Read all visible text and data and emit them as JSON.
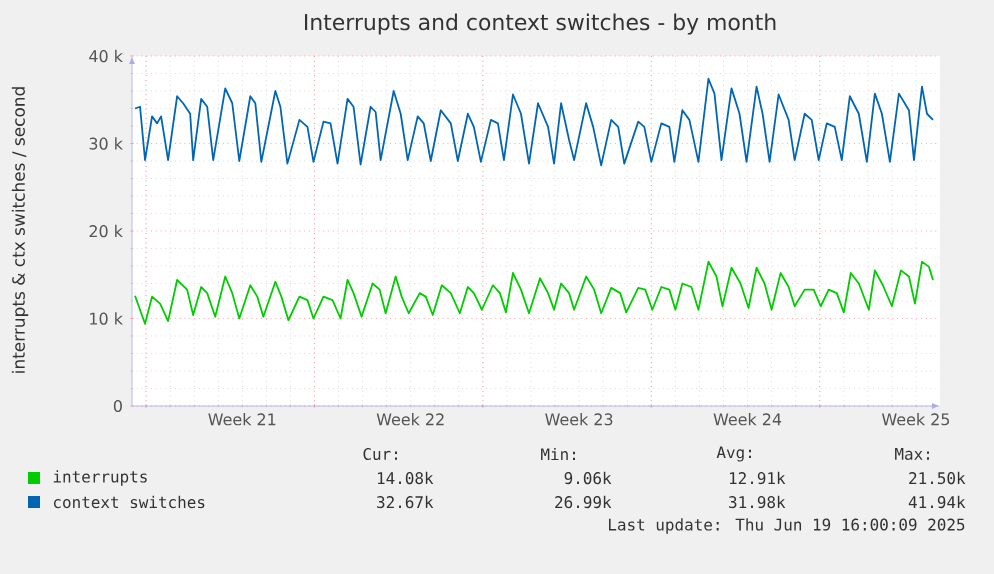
{
  "chart_data": {
    "type": "line",
    "title": "Interrupts and context switches - by month",
    "ylabel": "interrupts & ctx switches / second",
    "xlim": [
      "2025-05-18T10:00",
      "2025-06-21T00:00"
    ],
    "xticks": [
      {
        "value": "2025-05-19",
        "label": null
      },
      {
        "value": "2025-05-23",
        "label": "Week 21"
      },
      {
        "value": "2025-05-26",
        "label": null
      },
      {
        "value": "2025-05-30",
        "label": "Week 22"
      },
      {
        "value": "2025-06-02",
        "label": null
      },
      {
        "value": "2025-06-06",
        "label": "Week 23"
      },
      {
        "value": "2025-06-09",
        "label": null
      },
      {
        "value": "2025-06-13",
        "label": "Week 24"
      },
      {
        "value": "2025-06-16",
        "label": null
      },
      {
        "value": "2025-06-20",
        "label": "Week 25"
      }
    ],
    "ylim": [
      0,
      40000
    ],
    "yticks": [
      0,
      {
        "value": 10000,
        "label": "10 k"
      },
      {
        "value": 20000,
        "label": "20 k"
      },
      {
        "value": 30000,
        "label": "30 k"
      },
      {
        "value": 40000,
        "label": "40 k"
      }
    ],
    "grid": true,
    "legend": "bottom",
    "series": [
      {
        "name": "interrupts",
        "color": "#00cc00",
        "x": [
          "2025-05-18T13:00",
          "2025-05-18T23:00",
          "2025-05-19T06:00",
          "2025-05-19T14:00",
          "2025-05-19T22:00",
          "2025-05-20T07:00",
          "2025-05-20T17:00",
          "2025-05-20T23:00",
          "2025-05-21T07:00",
          "2025-05-21T13:00",
          "2025-05-21T21:00",
          "2025-05-22T07:00",
          "2025-05-22T14:00",
          "2025-05-22T21:00",
          "2025-05-23T08:00",
          "2025-05-23T15:00",
          "2025-05-23T21:00",
          "2025-05-24T09:00",
          "2025-05-24T15:00",
          "2025-05-24T22:00",
          "2025-05-25T09:00",
          "2025-05-25T17:00",
          "2025-05-25T23:00",
          "2025-05-26T09:00",
          "2025-05-26T18:00",
          "2025-05-27T02:00",
          "2025-05-27T09:00",
          "2025-05-27T15:00",
          "2025-05-27T23:00",
          "2025-05-28T10:00",
          "2025-05-28T17:00",
          "2025-05-28T23:00",
          "2025-05-29T09:00",
          "2025-05-29T15:00",
          "2025-05-29T22:00",
          "2025-05-30T09:00",
          "2025-05-30T15:00",
          "2025-05-30T22:00",
          "2025-05-31T07:00",
          "2025-05-31T16:00",
          "2025-06-01T01:00",
          "2025-06-01T09:00",
          "2025-06-01T15:00",
          "2025-06-01T23:00",
          "2025-06-02T10:00",
          "2025-06-02T17:00",
          "2025-06-02T23:00",
          "2025-06-03T06:00",
          "2025-06-03T14:00",
          "2025-06-03T22:00",
          "2025-06-04T09:00",
          "2025-06-04T17:00",
          "2025-06-04T23:00",
          "2025-06-05T06:00",
          "2025-06-05T14:00",
          "2025-06-05T19:00",
          "2025-06-06T07:00",
          "2025-06-06T15:00",
          "2025-06-06T22:00",
          "2025-06-07T08:00",
          "2025-06-07T17:00",
          "2025-06-07T23:00",
          "2025-06-08T11:00",
          "2025-06-08T18:00",
          "2025-06-09T01:00",
          "2025-06-09T10:00",
          "2025-06-09T18:00",
          "2025-06-10T00:00",
          "2025-06-10T07:00",
          "2025-06-10T16:00",
          "2025-06-10T23:00",
          "2025-06-11T09:00",
          "2025-06-11T17:00",
          "2025-06-11T23:00",
          "2025-06-12T08:00",
          "2025-06-12T17:00",
          "2025-06-13T01:00",
          "2025-06-13T09:00",
          "2025-06-13T17:00",
          "2025-06-14T00:00",
          "2025-06-14T09:00",
          "2025-06-14T17:00",
          "2025-06-14T23:00",
          "2025-06-15T09:00",
          "2025-06-15T18:00",
          "2025-06-16T01:00",
          "2025-06-16T09:00",
          "2025-06-16T17:00",
          "2025-06-17T00:00",
          "2025-06-17T07:00",
          "2025-06-17T15:00",
          "2025-06-18T01:00",
          "2025-06-18T07:00",
          "2025-06-18T15:00",
          "2025-06-19T00:00",
          "2025-06-19T09:00",
          "2025-06-19T17:00",
          "2025-06-19T23:00",
          "2025-06-20T06:00",
          "2025-06-20T13:00",
          "2025-06-20T17:00"
        ],
        "values": [
          12600,
          9400,
          12500,
          11700,
          9700,
          14400,
          13300,
          10400,
          13600,
          12900,
          10200,
          14800,
          12900,
          10000,
          13800,
          12500,
          10200,
          14200,
          12500,
          9800,
          12500,
          12100,
          10000,
          12500,
          12100,
          10000,
          14400,
          12900,
          10200,
          14000,
          13300,
          10600,
          14800,
          12500,
          10600,
          12900,
          12500,
          10400,
          13800,
          12900,
          10600,
          13600,
          12900,
          11000,
          13800,
          12900,
          10700,
          15200,
          13300,
          10600,
          14600,
          12900,
          11000,
          14000,
          12900,
          11000,
          14800,
          13300,
          10600,
          13500,
          12900,
          10700,
          13500,
          13300,
          11000,
          13600,
          13300,
          11000,
          14000,
          13600,
          11000,
          16500,
          14800,
          11400,
          15800,
          14000,
          11200,
          15800,
          14000,
          11000,
          15200,
          13600,
          11400,
          13300,
          13300,
          11400,
          13300,
          12900,
          10700,
          15200,
          14000,
          11000,
          15500,
          13800,
          11400,
          15500,
          14800,
          11700,
          16500,
          15900,
          14400
        ]
      },
      {
        "name": "context switches",
        "color": "#0066b3",
        "x": [
          "2025-05-18T13:00",
          "2025-05-18T18:00",
          "2025-05-18T23:00",
          "2025-05-19T06:00",
          "2025-05-19T11:00",
          "2025-05-19T15:00",
          "2025-05-19T22:00",
          "2025-05-20T07:00",
          "2025-05-20T13:00",
          "2025-05-20T20:00",
          "2025-05-20T23:00",
          "2025-05-21T07:00",
          "2025-05-21T13:00",
          "2025-05-21T19:00",
          "2025-05-22T07:00",
          "2025-05-22T14:00",
          "2025-05-22T21:00",
          "2025-05-23T08:00",
          "2025-05-23T13:00",
          "2025-05-23T19:00",
          "2025-05-24T09:00",
          "2025-05-24T14:00",
          "2025-05-24T21:00",
          "2025-05-25T09:00",
          "2025-05-25T17:00",
          "2025-05-25T23:00",
          "2025-05-26T09:00",
          "2025-05-26T16:00",
          "2025-05-26T23:00",
          "2025-05-27T09:00",
          "2025-05-27T15:00",
          "2025-05-27T22:00",
          "2025-05-28T08:00",
          "2025-05-28T13:00",
          "2025-05-28T18:00",
          "2025-05-29T07:00",
          "2025-05-29T14:00",
          "2025-05-29T21:00",
          "2025-05-30T07:00",
          "2025-05-30T13:00",
          "2025-05-30T20:00",
          "2025-05-31T06:00",
          "2025-05-31T16:00",
          "2025-05-31T23:00",
          "2025-06-01T09:00",
          "2025-06-01T15:00",
          "2025-06-01T22:00",
          "2025-06-02T08:00",
          "2025-06-02T15:00",
          "2025-06-02T21:00",
          "2025-06-03T06:00",
          "2025-06-03T14:00",
          "2025-06-03T22:00",
          "2025-06-04T07:00",
          "2025-06-04T17:00",
          "2025-06-04T23:00",
          "2025-06-05T06:00",
          "2025-06-05T14:00",
          "2025-06-05T19:00",
          "2025-06-06T07:00",
          "2025-06-06T14:00",
          "2025-06-06T22:00",
          "2025-06-07T08:00",
          "2025-06-07T15:00",
          "2025-06-07T21:00",
          "2025-06-08T11:00",
          "2025-06-08T17:00",
          "2025-06-09T00:00",
          "2025-06-09T10:00",
          "2025-06-09T18:00",
          "2025-06-09T23:00",
          "2025-06-10T07:00",
          "2025-06-10T14:00",
          "2025-06-10T23:00",
          "2025-06-11T09:00",
          "2025-06-11T15:00",
          "2025-06-11T22:00",
          "2025-06-12T08:00",
          "2025-06-12T16:00",
          "2025-06-12T23:00",
          "2025-06-13T09:00",
          "2025-06-13T15:00",
          "2025-06-13T22:00",
          "2025-06-14T07:00",
          "2025-06-14T17:00",
          "2025-06-14T23:00",
          "2025-06-15T09:00",
          "2025-06-15T16:00",
          "2025-06-15T23:00",
          "2025-06-16T07:00",
          "2025-06-16T15:00",
          "2025-06-16T22:00",
          "2025-06-17T06:00",
          "2025-06-17T15:00",
          "2025-06-17T23:00",
          "2025-06-18T07:00",
          "2025-06-18T14:00",
          "2025-06-18T22:00",
          "2025-06-19T07:00",
          "2025-06-19T17:00",
          "2025-06-19T22:00",
          "2025-06-20T06:00",
          "2025-06-20T11:00",
          "2025-06-20T17:00"
        ],
        "values": [
          34000,
          34200,
          28100,
          33100,
          32300,
          33100,
          28100,
          35400,
          34600,
          33400,
          28100,
          35100,
          34200,
          28100,
          36300,
          34600,
          28000,
          35400,
          34600,
          27900,
          36000,
          34200,
          27700,
          32700,
          31900,
          27900,
          32500,
          32300,
          27700,
          35100,
          34200,
          27600,
          34200,
          33600,
          28100,
          36000,
          33400,
          28100,
          33100,
          32300,
          28000,
          33800,
          32300,
          28000,
          33400,
          31900,
          27900,
          32700,
          32300,
          28100,
          35600,
          33400,
          27700,
          34600,
          31900,
          27700,
          34600,
          30400,
          28100,
          34600,
          31900,
          27500,
          32700,
          31900,
          27700,
          32500,
          31900,
          27900,
          32300,
          31900,
          27900,
          33800,
          32700,
          27900,
          37400,
          35700,
          28100,
          36300,
          33400,
          27900,
          36500,
          33400,
          27900,
          35600,
          32700,
          28100,
          33400,
          32700,
          28100,
          32300,
          31900,
          28100,
          35400,
          33400,
          27900,
          35700,
          33400,
          27900,
          35700,
          33800,
          28100,
          36500,
          33400,
          32700
        ]
      }
    ],
    "annotations": [
      "Cur:",
      "Min:",
      "Avg:",
      "Max:",
      "14.08k",
      "9.06k",
      "12.91k",
      "21.50k",
      "32.67k",
      "26.99k",
      "31.98k",
      "41.94k",
      "Last update: Thu Jun 19 16:00:09 2025"
    ]
  }
}
